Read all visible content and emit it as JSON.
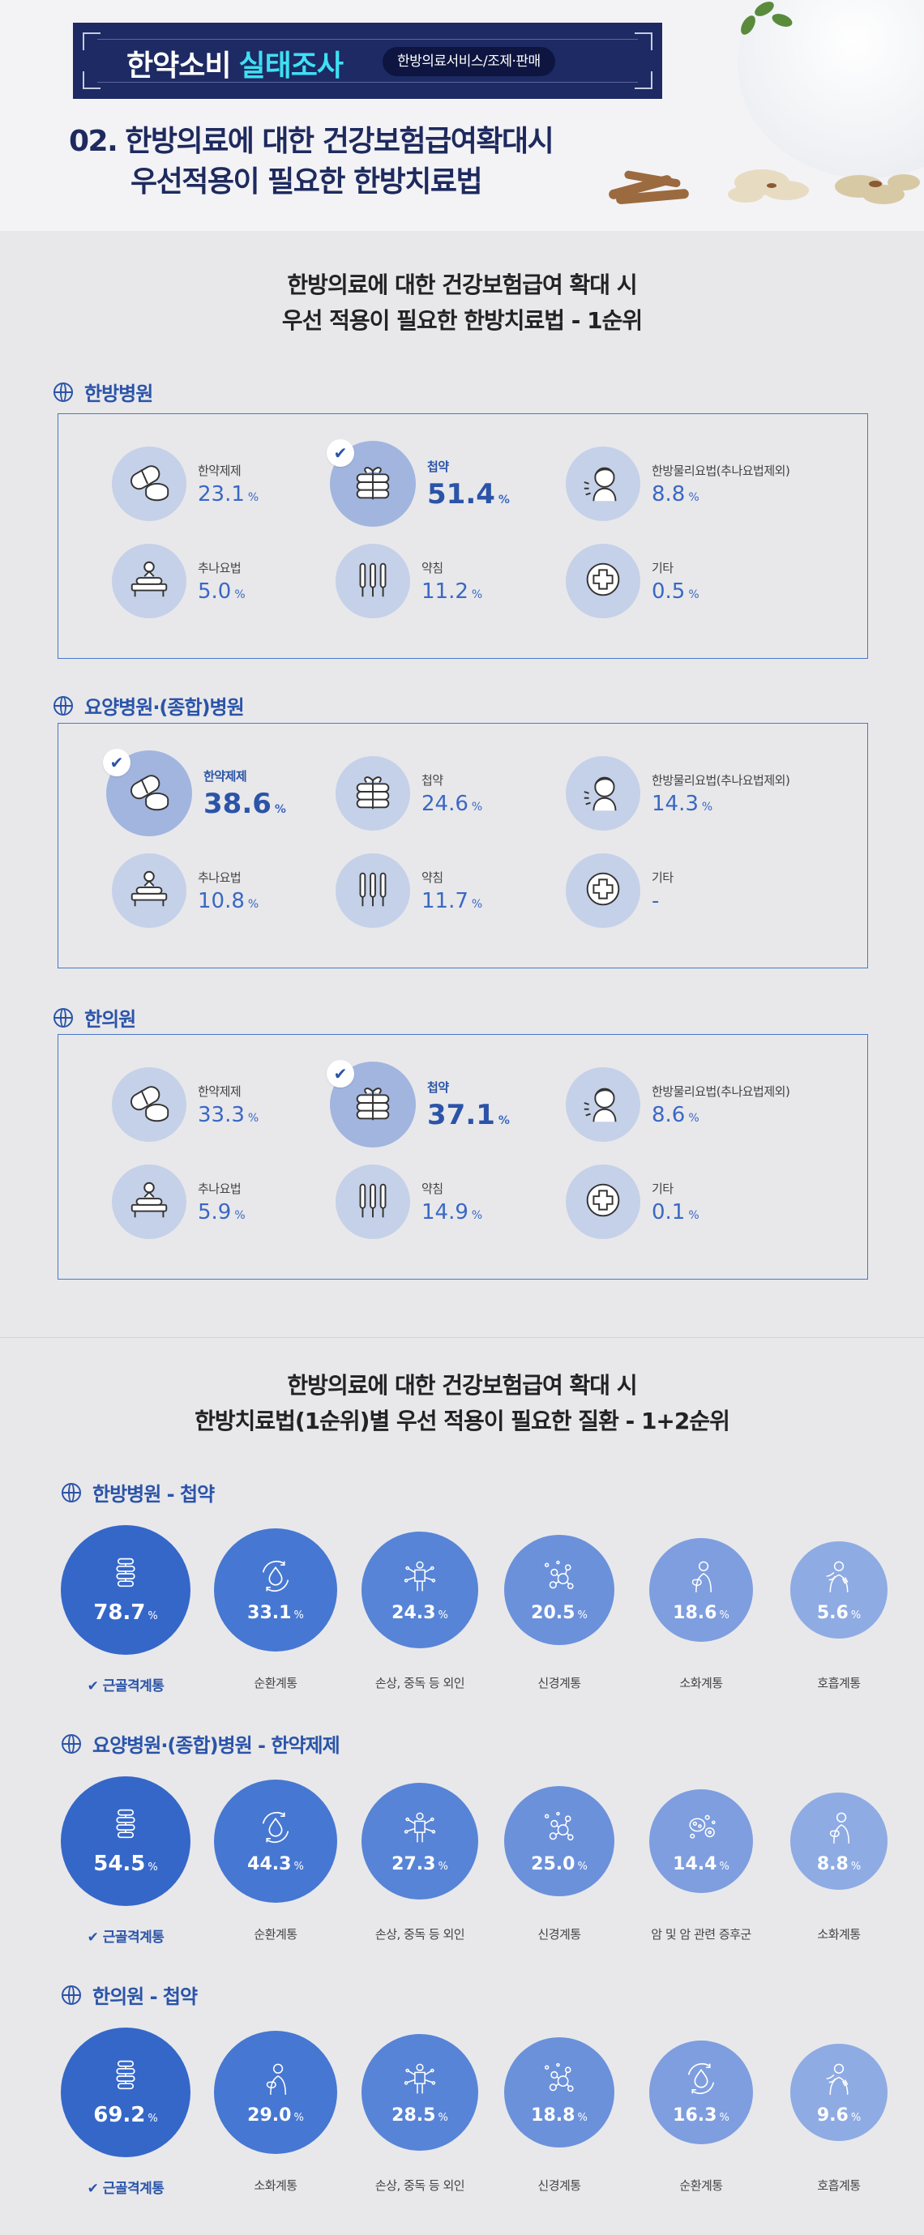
{
  "header": {
    "banner_title": "한약소비",
    "banner_accent": "실태조사",
    "banner_pill": "한방의료서비스/조제·판매",
    "number": "02.",
    "title_line1": "한방의료에 대한 건강보험급여확대시",
    "title_line2": "우선적용이 필요한 한방치료법"
  },
  "section1": {
    "title_line1": "한방의료에 대한 건강보험급여 확대 시",
    "title_line2": "우선 적용이 필요한 한방치료법 - 1순위",
    "pct": "%",
    "groups": [
      {
        "name": "한방병원",
        "items": [
          {
            "label": "한약제제",
            "value": "23.1",
            "icon": "pills-icon"
          },
          {
            "label": "첩약",
            "value": "51.4",
            "icon": "herbal-packet-icon",
            "top": true
          },
          {
            "label": "한방물리요법(추나요법제외)",
            "value": "8.8",
            "icon": "physiotherapy-icon"
          },
          {
            "label": "추나요법",
            "value": "5.0",
            "icon": "chuna-icon"
          },
          {
            "label": "약침",
            "value": "11.2",
            "icon": "acupuncture-icon"
          },
          {
            "label": "기타",
            "value": "0.5",
            "icon": "plus-icon"
          }
        ]
      },
      {
        "name": "요양병원·(종합)병원",
        "items": [
          {
            "label": "한약제제",
            "value": "38.6",
            "icon": "pills-icon",
            "top": true
          },
          {
            "label": "첩약",
            "value": "24.6",
            "icon": "herbal-packet-icon"
          },
          {
            "label": "한방물리요법(추나요법제외)",
            "value": "14.3",
            "icon": "physiotherapy-icon"
          },
          {
            "label": "추나요법",
            "value": "10.8",
            "icon": "chuna-icon"
          },
          {
            "label": "약침",
            "value": "11.7",
            "icon": "acupuncture-icon"
          },
          {
            "label": "기타",
            "value": "-",
            "icon": "plus-icon"
          }
        ]
      },
      {
        "name": "한의원",
        "items": [
          {
            "label": "한약제제",
            "value": "33.3",
            "icon": "pills-icon"
          },
          {
            "label": "첩약",
            "value": "37.1",
            "icon": "herbal-packet-icon",
            "top": true
          },
          {
            "label": "한방물리요법(추나요법제외)",
            "value": "8.6",
            "icon": "physiotherapy-icon"
          },
          {
            "label": "추나요법",
            "value": "5.9",
            "icon": "chuna-icon"
          },
          {
            "label": "약침",
            "value": "14.9",
            "icon": "acupuncture-icon"
          },
          {
            "label": "기타",
            "value": "0.1",
            "icon": "plus-icon"
          }
        ]
      }
    ]
  },
  "section2": {
    "title_line1": "한방의료에 대한 건강보험급여 확대 시",
    "title_line2": "한방치료법(1순위)별 우선 적용이 필요한 질환 - 1+2순위",
    "groups": [
      {
        "name": "한방병원 - 첩약",
        "items": [
          {
            "label": "근골격계통",
            "value": "78.7",
            "icon": "spine-icon"
          },
          {
            "label": "순환계통",
            "value": "33.1",
            "icon": "circulation-icon"
          },
          {
            "label": "손상, 중독 등 외인",
            "value": "24.3",
            "icon": "injury-icon"
          },
          {
            "label": "신경계통",
            "value": "20.5",
            "icon": "neuron-icon"
          },
          {
            "label": "소화계통",
            "value": "18.6",
            "icon": "digestion-icon"
          },
          {
            "label": "호흡계통",
            "value": "5.6",
            "icon": "respiration-icon"
          }
        ]
      },
      {
        "name": "요양병원·(종합)병원 - 한약제제",
        "items": [
          {
            "label": "근골격계통",
            "value": "54.5",
            "icon": "spine-icon"
          },
          {
            "label": "순환계통",
            "value": "44.3",
            "icon": "circulation-icon"
          },
          {
            "label": "손상, 중독 등 외인",
            "value": "27.3",
            "icon": "injury-icon"
          },
          {
            "label": "신경계통",
            "value": "25.0",
            "icon": "neuron-icon"
          },
          {
            "label": "암 및 암 관련 증후군",
            "value": "14.4",
            "icon": "cancer-cell-icon"
          },
          {
            "label": "소화계통",
            "value": "8.8",
            "icon": "digestion-icon"
          }
        ]
      },
      {
        "name": "한의원 - 첩약",
        "items": [
          {
            "label": "근골격계통",
            "value": "69.2",
            "icon": "spine-icon"
          },
          {
            "label": "소화계통",
            "value": "29.0",
            "icon": "digestion-icon"
          },
          {
            "label": "손상, 중독 등 외인",
            "value": "28.5",
            "icon": "injury-icon"
          },
          {
            "label": "신경계통",
            "value": "18.8",
            "icon": "neuron-icon"
          },
          {
            "label": "순환계통",
            "value": "16.3",
            "icon": "circulation-icon"
          },
          {
            "label": "호흡계통",
            "value": "9.6",
            "icon": "respiration-icon"
          }
        ]
      }
    ]
  }
}
